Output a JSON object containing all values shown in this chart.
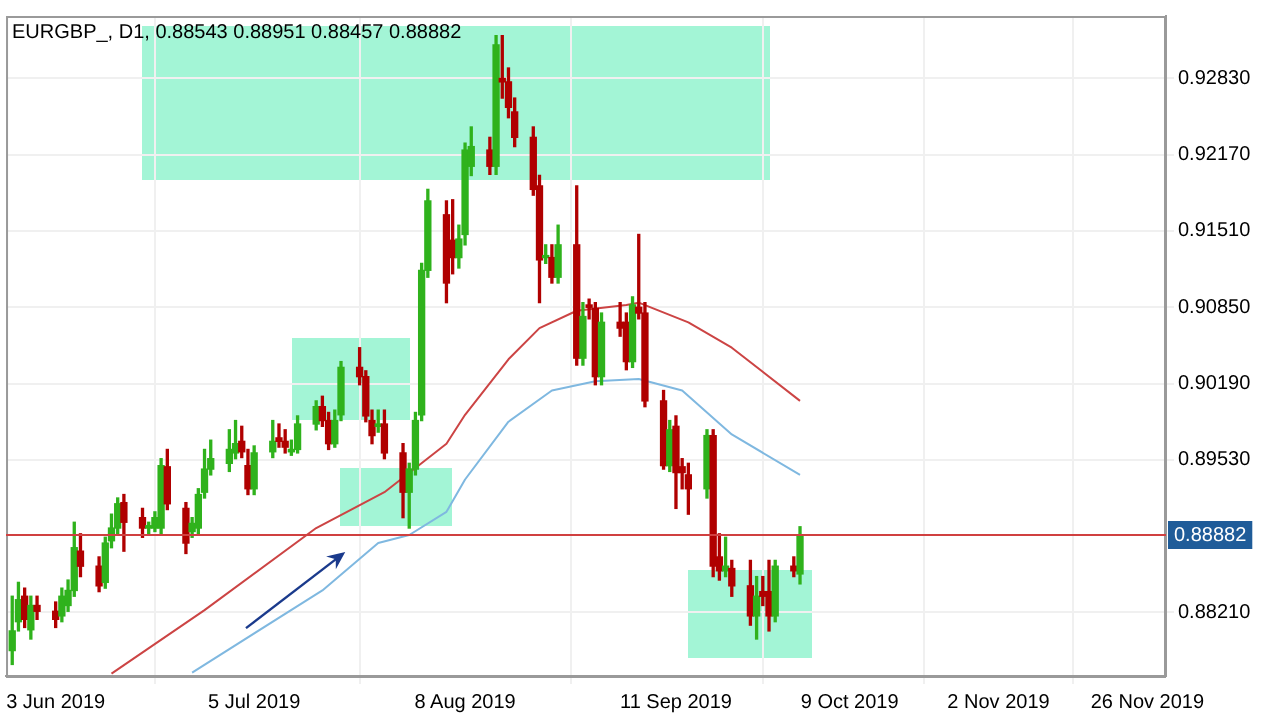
{
  "chart_data": {
    "type": "candlestick",
    "title": "EURGBP_, D1, 0.88543 0.88951 0.88457 0.88882",
    "xlim": [
      "2019-05-26",
      "2019-11-29"
    ],
    "xticks": [
      {
        "value": "2019-06-03",
        "label": "3 Jun 2019"
      },
      {
        "value": "2019-07-05",
        "label": "5 Jul 2019"
      },
      {
        "value": "2019-08-08",
        "label": "8 Aug 2019"
      },
      {
        "value": "2019-09-11",
        "label": "11 Sep 2019"
      },
      {
        "value": "2019-10-09",
        "label": "9 Oct 2019"
      },
      {
        "value": "2019-11-02",
        "label": "2 Nov 2019"
      },
      {
        "value": "2019-11-26",
        "label": "26 Nov 2019"
      }
    ],
    "ylim": [
      0.8766,
      0.9337
    ],
    "yticks": [
      {
        "value": 0.8821,
        "label": "0.88210"
      },
      {
        "value": 0.8953,
        "label": "0.89530"
      },
      {
        "value": 0.9019,
        "label": "0.90190"
      },
      {
        "value": 0.9085,
        "label": "0.90850"
      },
      {
        "value": 0.9151,
        "label": "0.91510"
      },
      {
        "value": 0.9217,
        "label": "0.92170"
      },
      {
        "value": 0.9283,
        "label": "0.92830"
      }
    ],
    "grid": true,
    "ref_lines": [
      {
        "axis": "y",
        "value": 0.88882,
        "label": "0.88882",
        "color": "#d04040"
      }
    ],
    "series": [
      {
        "x": [
          "2019-05-27",
          "2019-05-28",
          "2019-05-29",
          "2019-05-30",
          "2019-05-31",
          "2019-06-03",
          "2019-06-04",
          "2019-06-05",
          "2019-06-06",
          "2019-06-07",
          "2019-06-10",
          "2019-06-11",
          "2019-06-12",
          "2019-06-13",
          "2019-06-14",
          "2019-06-17",
          "2019-06-18",
          "2019-06-19",
          "2019-06-20",
          "2019-06-21",
          "2019-06-24",
          "2019-06-25",
          "2019-06-26",
          "2019-06-27",
          "2019-06-28",
          "2019-07-01",
          "2019-07-02",
          "2019-07-03",
          "2019-07-04",
          "2019-07-05",
          "2019-07-08",
          "2019-07-09",
          "2019-07-10",
          "2019-07-11",
          "2019-07-12",
          "2019-07-15",
          "2019-07-16",
          "2019-07-17",
          "2019-07-18",
          "2019-07-19",
          "2019-07-22",
          "2019-07-23",
          "2019-07-24",
          "2019-07-25",
          "2019-07-26",
          "2019-07-29",
          "2019-07-30",
          "2019-07-31",
          "2019-08-01",
          "2019-08-02",
          "2019-08-05",
          "2019-08-06",
          "2019-08-07",
          "2019-08-08",
          "2019-08-09",
          "2019-08-12",
          "2019-08-13",
          "2019-08-14",
          "2019-08-15",
          "2019-08-16",
          "2019-08-19",
          "2019-08-20",
          "2019-08-21",
          "2019-08-22",
          "2019-08-23",
          "2019-08-26",
          "2019-08-27",
          "2019-08-28",
          "2019-08-29",
          "2019-08-30",
          "2019-09-02",
          "2019-09-03",
          "2019-09-04",
          "2019-09-05",
          "2019-09-06",
          "2019-09-09",
          "2019-09-10",
          "2019-09-11",
          "2019-09-12",
          "2019-09-13",
          "2019-09-16",
          "2019-09-17",
          "2019-09-18",
          "2019-09-19",
          "2019-09-20",
          "2019-09-23",
          "2019-09-24",
          "2019-09-25",
          "2019-09-26",
          "2019-09-27",
          "2019-09-30",
          "2019-10-01"
        ],
        "ohlc": [
          [
            0.8788,
            0.8835,
            0.8776,
            0.8805
          ],
          [
            0.8813,
            0.8847,
            0.8805,
            0.8832
          ],
          [
            0.8835,
            0.8842,
            0.8808,
            0.8815
          ],
          [
            0.8806,
            0.8835,
            0.8798,
            0.8827
          ],
          [
            0.8827,
            0.8835,
            0.8815,
            0.8822
          ],
          [
            0.8822,
            0.883,
            0.8808,
            0.8815
          ],
          [
            0.8818,
            0.8842,
            0.8813,
            0.8835
          ],
          [
            0.8827,
            0.8849,
            0.8822,
            0.884
          ],
          [
            0.884,
            0.8899,
            0.8835,
            0.8877
          ],
          [
            0.8874,
            0.8889,
            0.8852,
            0.8861
          ],
          [
            0.8861,
            0.8869,
            0.8839,
            0.8844
          ],
          [
            0.8847,
            0.8886,
            0.8842,
            0.8881
          ],
          [
            0.8883,
            0.8906,
            0.8877,
            0.8894
          ],
          [
            0.8894,
            0.892,
            0.8889,
            0.8915
          ],
          [
            0.8916,
            0.8923,
            0.8874,
            0.8899
          ],
          [
            0.8903,
            0.8911,
            0.8886,
            0.8894
          ],
          [
            0.8894,
            0.8899,
            0.8889,
            0.8896
          ],
          [
            0.8894,
            0.8908,
            0.8891,
            0.8903
          ],
          [
            0.8894,
            0.8954,
            0.8889,
            0.8948
          ],
          [
            0.8947,
            0.8962,
            0.891,
            0.8915
          ],
          [
            0.8911,
            0.8916,
            0.8872,
            0.8881
          ],
          [
            0.8891,
            0.8903,
            0.8886,
            0.8898
          ],
          [
            0.8894,
            0.8928,
            0.8889,
            0.8923
          ],
          [
            0.8925,
            0.8962,
            0.892,
            0.8945
          ],
          [
            0.8945,
            0.897,
            0.894,
            0.8954
          ],
          [
            0.895,
            0.8979,
            0.8943,
            0.8962
          ],
          [
            0.8959,
            0.8987,
            0.8954,
            0.8967
          ],
          [
            0.8969,
            0.8982,
            0.8955,
            0.896
          ],
          [
            0.8948,
            0.8962,
            0.8923,
            0.8928
          ],
          [
            0.8928,
            0.8965,
            0.8923,
            0.8959
          ],
          [
            0.896,
            0.8987,
            0.8955,
            0.8969
          ],
          [
            0.8972,
            0.8984,
            0.8964,
            0.8969
          ],
          [
            0.8969,
            0.8979,
            0.8959,
            0.8964
          ],
          [
            0.896,
            0.897,
            0.8957,
            0.8962
          ],
          [
            0.8962,
            0.8991,
            0.8959,
            0.8984
          ],
          [
            0.8984,
            0.9004,
            0.8979,
            0.8999
          ],
          [
            0.8999,
            0.9008,
            0.8982,
            0.8987
          ],
          [
            0.8987,
            0.8994,
            0.8962,
            0.8967
          ],
          [
            0.8967,
            0.8996,
            0.8964,
            0.8987
          ],
          [
            0.8992,
            0.9038,
            0.8987,
            0.9033
          ],
          [
            0.9033,
            0.905,
            0.9018,
            0.9025
          ],
          [
            0.9025,
            0.903,
            0.8986,
            0.8991
          ],
          [
            0.8987,
            0.8996,
            0.8967,
            0.8974
          ],
          [
            0.8982,
            0.8996,
            0.8977,
            0.8984
          ],
          [
            0.8984,
            0.8996,
            0.8954,
            0.8959
          ],
          [
            0.8959,
            0.8967,
            0.8903,
            0.8925
          ],
          [
            0.8925,
            0.895,
            0.8894,
            0.8945
          ],
          [
            0.8945,
            0.8994,
            0.894,
            0.8987
          ],
          [
            0.8992,
            0.9123,
            0.8987,
            0.9117
          ],
          [
            0.9117,
            0.9187,
            0.9111,
            0.9177
          ],
          [
            0.9165,
            0.9177,
            0.9089,
            0.9106
          ],
          [
            0.9143,
            0.9178,
            0.9114,
            0.9128
          ],
          [
            0.9128,
            0.9156,
            0.9119,
            0.9144
          ],
          [
            0.9148,
            0.9227,
            0.9139,
            0.9221
          ],
          [
            0.9207,
            0.9241,
            0.9199,
            0.9224
          ],
          [
            0.9221,
            0.9232,
            0.92,
            0.9207
          ],
          [
            0.9207,
            0.932,
            0.92,
            0.9312
          ],
          [
            0.9283,
            0.932,
            0.9266,
            0.928
          ],
          [
            0.928,
            0.9292,
            0.9249,
            0.9258
          ],
          [
            0.9254,
            0.9266,
            0.9224,
            0.9232
          ],
          [
            0.9232,
            0.9241,
            0.9182,
            0.9187
          ],
          [
            0.919,
            0.9199,
            0.9089,
            0.9126
          ],
          [
            0.9128,
            0.9139,
            0.9123,
            0.9129
          ],
          [
            0.9128,
            0.9139,
            0.9106,
            0.9111
          ],
          [
            0.9111,
            0.9156,
            0.9106,
            0.9139
          ],
          [
            0.9139,
            0.919,
            0.9035,
            0.9041
          ],
          [
            0.9041,
            0.9089,
            0.9035,
            0.9077
          ],
          [
            0.9087,
            0.9092,
            0.9075,
            0.9085
          ],
          [
            0.9084,
            0.9089,
            0.9018,
            0.9025
          ],
          [
            0.9025,
            0.908,
            0.9018,
            0.9072
          ],
          [
            0.9072,
            0.9089,
            0.906,
            0.9067
          ],
          [
            0.9072,
            0.908,
            0.9031,
            0.9038
          ],
          [
            0.9038,
            0.9094,
            0.9033,
            0.9087
          ],
          [
            0.9085,
            0.9148,
            0.9075,
            0.908
          ],
          [
            0.908,
            0.9089,
            0.8999,
            0.9004
          ],
          [
            0.9004,
            0.9013,
            0.8945,
            0.8948
          ],
          [
            0.8948,
            0.8987,
            0.8943,
            0.8979
          ],
          [
            0.8982,
            0.8991,
            0.8911,
            0.8942
          ],
          [
            0.8947,
            0.8954,
            0.8928,
            0.8942
          ],
          [
            0.894,
            0.895,
            0.8906,
            0.8928
          ],
          [
            0.8928,
            0.8979,
            0.892,
            0.8974
          ],
          [
            0.8974,
            0.8979,
            0.8852,
            0.8861
          ],
          [
            0.8869,
            0.8889,
            0.8849,
            0.8857
          ],
          [
            0.8857,
            0.8886,
            0.8852,
            0.8861
          ],
          [
            0.8859,
            0.8866,
            0.8835,
            0.8844
          ],
          [
            0.8844,
            0.8866,
            0.881,
            0.8818
          ],
          [
            0.8818,
            0.8852,
            0.8798,
            0.8835
          ],
          [
            0.8839,
            0.8852,
            0.8827,
            0.8835
          ],
          [
            0.8839,
            0.8866,
            0.8805,
            0.8818
          ],
          [
            0.8818,
            0.8866,
            0.8813,
            0.8861
          ],
          [
            0.8861,
            0.8869,
            0.8852,
            0.8857
          ],
          [
            0.88543,
            0.88951,
            0.88457,
            0.88882
          ]
        ],
        "colors": [
          "#2fb21c",
          "#2fb21c",
          "#b00000",
          "#2fb21c",
          "#b00000",
          "#b00000",
          "#2fb21c",
          "#2fb21c",
          "#2fb21c",
          "#b00000",
          "#b00000",
          "#2fb21c",
          "#2fb21c",
          "#2fb21c",
          "#b00000",
          "#b00000",
          "#2fb21c",
          "#2fb21c",
          "#2fb21c",
          "#b00000",
          "#b00000",
          "#2fb21c",
          "#2fb21c",
          "#2fb21c",
          "#2fb21c",
          "#2fb21c",
          "#2fb21c",
          "#b00000",
          "#b00000",
          "#2fb21c",
          "#2fb21c",
          "#b00000",
          "#b00000",
          "#2fb21c",
          "#2fb21c",
          "#2fb21c",
          "#b00000",
          "#b00000",
          "#2fb21c",
          "#2fb21c",
          "#b00000",
          "#b00000",
          "#b00000",
          "#2fb21c",
          "#b00000",
          "#b00000",
          "#2fb21c",
          "#2fb21c",
          "#2fb21c",
          "#2fb21c",
          "#b00000",
          "#b00000",
          "#2fb21c",
          "#2fb21c",
          "#2fb21c",
          "#b00000",
          "#2fb21c",
          "#b00000",
          "#b00000",
          "#b00000",
          "#b00000",
          "#b00000",
          "#2fb21c",
          "#b00000",
          "#2fb21c",
          "#b00000",
          "#2fb21c",
          "#b00000",
          "#b00000",
          "#2fb21c",
          "#b00000",
          "#b00000",
          "#2fb21c",
          "#b00000",
          "#b00000",
          "#b00000",
          "#2fb21c",
          "#b00000",
          "#b00000",
          "#b00000",
          "#2fb21c",
          "#b00000",
          "#b00000",
          "#2fb21c",
          "#b00000",
          "#b00000",
          "#2fb21c",
          "#b00000",
          "#b00000",
          "#2fb21c",
          "#b00000",
          "#2fb21c"
        ]
      },
      {
        "type": "line",
        "color": "#cc4444",
        "x": [
          "2019-06-12",
          "2019-06-27",
          "2019-07-15",
          "2019-07-26",
          "2019-08-05",
          "2019-08-08",
          "2019-08-15",
          "2019-08-20",
          "2019-08-26",
          "2019-09-03",
          "2019-09-05",
          "2019-09-13",
          "2019-09-20",
          "2019-10-01"
        ],
        "values": [
          0.8768,
          0.8823,
          0.8894,
          0.8925,
          0.8967,
          0.8992,
          0.904,
          0.9067,
          0.9082,
          0.9087,
          0.9089,
          0.9072,
          0.905,
          0.9004
        ]
      },
      {
        "type": "line",
        "color": "#7fb8e0",
        "x": [
          "2019-06-25",
          "2019-07-16",
          "2019-07-25",
          "2019-07-30",
          "2019-08-05",
          "2019-08-08",
          "2019-08-15",
          "2019-08-22",
          "2019-08-29",
          "2019-09-05",
          "2019-09-12",
          "2019-09-20",
          "2019-10-01"
        ],
        "values": [
          0.8769,
          0.884,
          0.8881,
          0.8888,
          0.8908,
          0.8936,
          0.8986,
          0.9013,
          0.9021,
          0.9023,
          0.9013,
          0.8975,
          0.894
        ]
      }
    ]
  }
}
